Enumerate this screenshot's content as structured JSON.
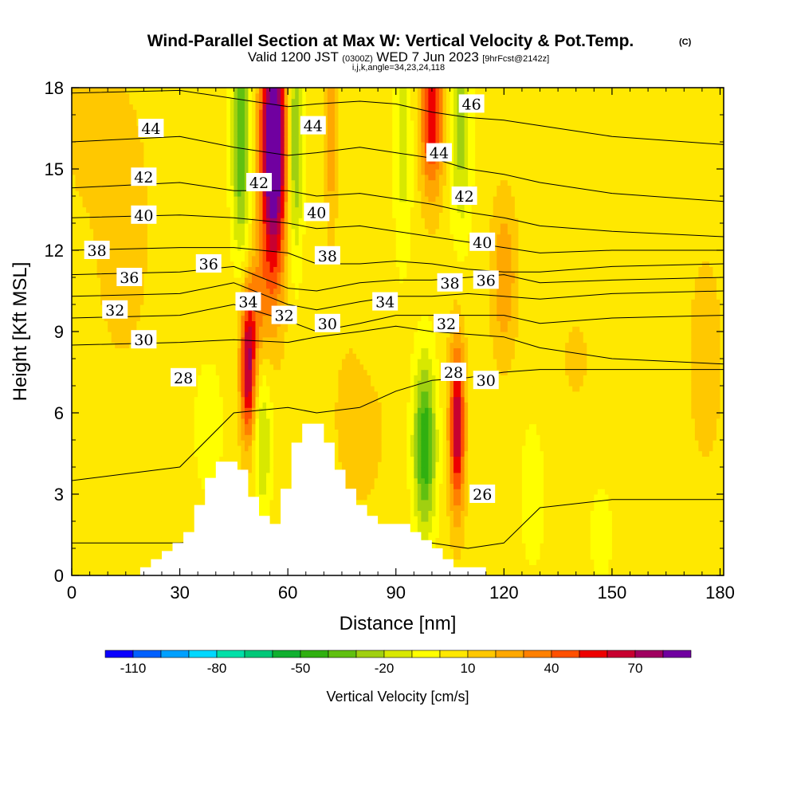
{
  "title": {
    "main": "Wind-Parallel Section at Max W: Vertical Velocity & Pot.Temp.",
    "copyright": "(C)",
    "valid_prefix": "Valid 1200 JST",
    "valid_utc": "(0300Z)",
    "valid_date": "WED 7 Jun 2023",
    "forecast": "[9hrFcst@2142z]",
    "indices": "i,j,k,angle=34,23,24,118"
  },
  "chart_data": {
    "type": "heatmap",
    "title": "Wind-Parallel Section at Max W: Vertical Velocity & Pot.Temp.",
    "xlabel": "Distance [nm]",
    "ylabel": "Height [Kft MSL]",
    "xlim": [
      0,
      181
    ],
    "ylim": [
      0,
      18
    ],
    "xticks": [
      0,
      30,
      60,
      90,
      120,
      150,
      180
    ],
    "yticks": [
      0,
      3,
      6,
      9,
      12,
      15,
      18
    ],
    "grid": false,
    "colorbar": {
      "title": "Vertical Velocity [cm/s]",
      "ticks": [
        -110,
        -80,
        -50,
        -20,
        10,
        40,
        70
      ],
      "boundaries": [
        -120,
        -110,
        -100,
        -90,
        -80,
        -70,
        -60,
        -50,
        -40,
        -30,
        -20,
        -10,
        0,
        10,
        20,
        30,
        40,
        50,
        60,
        70,
        80,
        90
      ],
      "colors": [
        "#0a00ff",
        "#0060ff",
        "#00a0ff",
        "#00d8ff",
        "#00e0a8",
        "#00c878",
        "#10b030",
        "#30b010",
        "#60c010",
        "#a0d010",
        "#d8e800",
        "#ffff00",
        "#ffe800",
        "#ffc800",
        "#ffa800",
        "#ff8000",
        "#ff5000",
        "#ee0000",
        "#c80030",
        "#a00060",
        "#7000a0"
      ]
    },
    "terrain": {
      "x": [
        0,
        19,
        19,
        22,
        22,
        25,
        25,
        28,
        28,
        31,
        31,
        34,
        34,
        37,
        37,
        40,
        40,
        43,
        43,
        46,
        46,
        49,
        49,
        52,
        52,
        55,
        55,
        58,
        58,
        61,
        61,
        64,
        64,
        67,
        67,
        70,
        70,
        73,
        73,
        76,
        76,
        79,
        79,
        82,
        82,
        85,
        85,
        91,
        91,
        94,
        94,
        97,
        97,
        100,
        100,
        103,
        103,
        106,
        106,
        109,
        109,
        115,
        115,
        181
      ],
      "height": [
        0,
        0,
        0.3,
        0.3,
        0.6,
        0.6,
        0.9,
        0.9,
        1.2,
        1.2,
        1.6,
        1.6,
        2.6,
        2.6,
        3.6,
        3.6,
        4.2,
        4.2,
        4.2,
        4.2,
        3.9,
        3.9,
        2.9,
        2.9,
        2.2,
        2.2,
        1.9,
        1.9,
        3.2,
        3.2,
        4.9,
        4.9,
        5.6,
        5.6,
        5.6,
        5.6,
        4.9,
        4.9,
        3.9,
        3.9,
        3.2,
        3.2,
        2.6,
        2.6,
        2.2,
        2.2,
        1.9,
        1.9,
        1.9,
        1.9,
        1.6,
        1.6,
        1.3,
        1.3,
        1.0,
        1.0,
        0.6,
        0.6,
        0.3,
        0.3,
        0.3,
        0.3,
        0,
        0
      ]
    },
    "w_field_cm_s": {
      "background": 5,
      "features": [
        {
          "x": 56,
          "h": 16.5,
          "sx": 2.5,
          "sh": 2.5,
          "w": 85
        },
        {
          "x": 56,
          "h": 13.0,
          "sx": 2.5,
          "sh": 2.8,
          "w": 40
        },
        {
          "x": 49,
          "h": 7.5,
          "sx": 1.5,
          "sh": 1.8,
          "w": 65
        },
        {
          "x": 51,
          "h": 10.0,
          "sx": 2.5,
          "sh": 1.5,
          "w": 25
        },
        {
          "x": 47,
          "h": 16.0,
          "sx": 1.8,
          "sh": 3.0,
          "w": -45
        },
        {
          "x": 62,
          "h": 16.0,
          "sx": 1.5,
          "sh": 3.0,
          "w": -40
        },
        {
          "x": 53,
          "h": 5.0,
          "sx": 1.8,
          "sh": 2.0,
          "w": -25
        },
        {
          "x": 72,
          "h": 16.5,
          "sx": 1.2,
          "sh": 2.5,
          "w": 25
        },
        {
          "x": 92,
          "h": 16.0,
          "sx": 1.8,
          "sh": 3.0,
          "w": -20
        },
        {
          "x": 100,
          "h": 17.0,
          "sx": 2.2,
          "sh": 2.0,
          "w": 55
        },
        {
          "x": 98,
          "h": 4.8,
          "sx": 2.2,
          "sh": 2.2,
          "w": -55
        },
        {
          "x": 107,
          "h": 5.5,
          "sx": 1.5,
          "sh": 2.2,
          "w": 65
        },
        {
          "x": 108,
          "h": 16.5,
          "sx": 2.0,
          "sh": 2.8,
          "w": -30
        },
        {
          "x": 120,
          "h": 11.0,
          "sx": 2.5,
          "sh": 2.0,
          "w": 25
        },
        {
          "x": 38,
          "h": 5.5,
          "sx": 3.0,
          "sh": 1.8,
          "w": -12
        },
        {
          "x": 80,
          "h": 6.0,
          "sx": 5.0,
          "sh": 2.5,
          "w": 12
        },
        {
          "x": 84,
          "h": 9.0,
          "sx": 4.0,
          "sh": 1.5,
          "w": -8
        },
        {
          "x": 14,
          "h": 13.0,
          "sx": 6.0,
          "sh": 4.0,
          "w": 10
        },
        {
          "x": 4,
          "h": 17.0,
          "sx": 4.0,
          "sh": 2.0,
          "w": 12
        },
        {
          "x": 176,
          "h": 8.0,
          "sx": 3.0,
          "sh": 2.5,
          "w": 15
        },
        {
          "x": 140,
          "h": 8.0,
          "sx": 5.0,
          "sh": 2.0,
          "w": 6
        },
        {
          "x": 128,
          "h": 3.0,
          "sx": 2.5,
          "sh": 2.0,
          "w": -12
        },
        {
          "x": 147,
          "h": 1.5,
          "sx": 2.5,
          "sh": 1.5,
          "w": -10
        }
      ]
    },
    "theta_contours": {
      "units": "C",
      "x": [
        0,
        30,
        45,
        60,
        68,
        80,
        90,
        100,
        110,
        120,
        130,
        150,
        181
      ],
      "levels": [
        {
          "value": 26,
          "height": [
            1.2,
            1.2,
            1.3,
            1.4,
            1.5,
            1.5,
            1.4,
            1.2,
            1.0,
            1.2,
            2.5,
            2.8,
            2.8
          ]
        },
        {
          "value": 28,
          "height": [
            3.5,
            4.0,
            6.0,
            6.2,
            6.0,
            6.2,
            6.8,
            7.2,
            7.3,
            7.5,
            7.6,
            7.6,
            7.6
          ]
        },
        {
          "value": 30,
          "height": [
            8.5,
            8.6,
            8.7,
            8.6,
            8.8,
            9.0,
            9.2,
            9.0,
            8.9,
            8.8,
            8.4,
            8.0,
            7.8
          ]
        },
        {
          "value": 32,
          "height": [
            9.5,
            9.6,
            10.0,
            9.4,
            9.0,
            9.3,
            9.6,
            9.6,
            9.6,
            9.6,
            9.3,
            9.5,
            9.6
          ]
        },
        {
          "value": 34,
          "height": [
            10.3,
            10.4,
            10.8,
            10.0,
            9.8,
            10.1,
            10.3,
            10.3,
            10.4,
            10.3,
            10.2,
            10.4,
            10.5
          ]
        },
        {
          "value": 36,
          "height": [
            11.1,
            11.2,
            11.4,
            10.6,
            10.5,
            10.8,
            10.9,
            10.9,
            11.0,
            11.1,
            10.8,
            10.9,
            11.0
          ]
        },
        {
          "value": 38,
          "height": [
            12.0,
            12.1,
            12.1,
            11.9,
            11.5,
            11.5,
            11.6,
            11.5,
            11.3,
            11.2,
            11.2,
            11.4,
            11.5
          ]
        },
        {
          "value": 40,
          "height": [
            13.2,
            13.3,
            13.2,
            13.0,
            12.8,
            12.9,
            12.7,
            12.5,
            12.3,
            12.1,
            11.9,
            12.0,
            12.0
          ]
        },
        {
          "value": 42,
          "height": [
            14.3,
            14.5,
            14.2,
            14.2,
            14.0,
            14.1,
            13.9,
            13.7,
            13.4,
            13.2,
            12.9,
            12.7,
            12.5
          ]
        },
        {
          "value": 44,
          "height": [
            16.0,
            16.2,
            15.8,
            15.5,
            15.6,
            15.8,
            15.6,
            15.4,
            15.0,
            14.8,
            14.5,
            14.1,
            13.8
          ]
        },
        {
          "value": 46,
          "height": [
            17.8,
            17.9,
            17.6,
            17.3,
            17.4,
            17.5,
            17.4,
            17.1,
            16.9,
            16.8,
            16.6,
            16.2,
            15.9
          ]
        }
      ],
      "labels": [
        {
          "value": "44",
          "x": 22,
          "h": 16.5
        },
        {
          "value": "42",
          "x": 20,
          "h": 14.7
        },
        {
          "value": "40",
          "x": 20,
          "h": 13.3
        },
        {
          "value": "38",
          "x": 7,
          "h": 12.0
        },
        {
          "value": "36",
          "x": 16,
          "h": 11.0
        },
        {
          "value": "32",
          "x": 12,
          "h": 9.8
        },
        {
          "value": "30",
          "x": 20,
          "h": 8.7
        },
        {
          "value": "28",
          "x": 31,
          "h": 7.3
        },
        {
          "value": "36",
          "x": 38,
          "h": 11.5
        },
        {
          "value": "42",
          "x": 52,
          "h": 14.5
        },
        {
          "value": "34",
          "x": 49,
          "h": 10.1
        },
        {
          "value": "32",
          "x": 59,
          "h": 9.6
        },
        {
          "value": "30",
          "x": 71,
          "h": 9.3
        },
        {
          "value": "44",
          "x": 67,
          "h": 16.6
        },
        {
          "value": "40",
          "x": 68,
          "h": 13.4
        },
        {
          "value": "38",
          "x": 71,
          "h": 11.8
        },
        {
          "value": "34",
          "x": 87,
          "h": 10.1
        },
        {
          "value": "32",
          "x": 104,
          "h": 9.3
        },
        {
          "value": "28",
          "x": 106,
          "h": 7.5
        },
        {
          "value": "38",
          "x": 105,
          "h": 10.8
        },
        {
          "value": "36",
          "x": 115,
          "h": 10.9
        },
        {
          "value": "30",
          "x": 115,
          "h": 7.2
        },
        {
          "value": "40",
          "x": 114,
          "h": 12.3
        },
        {
          "value": "42",
          "x": 109,
          "h": 14.0
        },
        {
          "value": "44",
          "x": 102,
          "h": 15.6
        },
        {
          "value": "46",
          "x": 111,
          "h": 17.4
        },
        {
          "value": "26",
          "x": 114,
          "h": 3.0
        }
      ]
    }
  }
}
